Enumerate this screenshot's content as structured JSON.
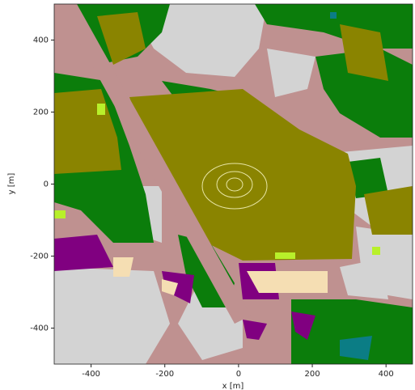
{
  "chart_data": {
    "type": "image",
    "xlabel": "x [m]",
    "ylabel": "y [m]",
    "xlim": [
      -500,
      472
    ],
    "ylim": [
      -500,
      500
    ],
    "xticks": [
      -400,
      -200,
      0,
      200,
      400
    ],
    "yticks": [
      -400,
      -200,
      0,
      200,
      400
    ]
  }
}
